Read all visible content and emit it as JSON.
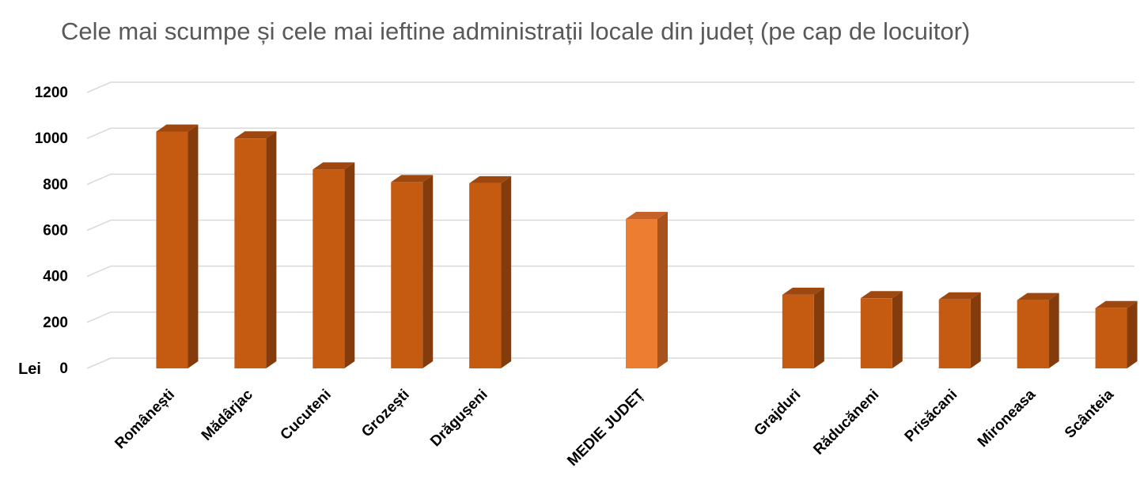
{
  "chart_data": {
    "type": "bar",
    "title": "Cele mai scumpe și cele mai ieftine administrații locale din județ (pe cap de locuitor)",
    "ylabel": "Lei",
    "xlabel": "",
    "ylim": [
      0,
      1200
    ],
    "yticks": [
      0,
      200,
      400,
      600,
      800,
      1000,
      1200
    ],
    "grid": true,
    "legend": "none",
    "style": "3d-column",
    "categories": [
      "Românești",
      "Mădârjac",
      "Cucuteni",
      "Grozești",
      "Drăgușeni",
      "",
      "MEDIE JUDEȚ",
      "",
      "Grajduri",
      "Răducăneni",
      "Prisăcani",
      "Mironeasa",
      "Scânteia"
    ],
    "values": [
      1030,
      1000,
      865,
      810,
      805,
      null,
      650,
      null,
      320,
      305,
      300,
      297,
      262
    ],
    "colors": {
      "bar": "#c55a11",
      "bar_side": "#843c0c",
      "bar_top": "#9e4810",
      "highlight": "#ed7d31",
      "highlight_side": "#a8531e",
      "highlight_top": "#c4622a",
      "grid": "#d9d9d9"
    }
  }
}
